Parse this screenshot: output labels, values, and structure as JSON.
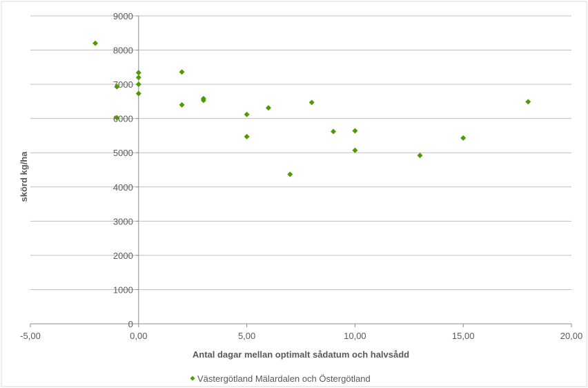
{
  "chart_data": {
    "type": "scatter",
    "title": "",
    "xlabel": "Antal dagar mellan optimalt sådatum och halvsådd",
    "ylabel": "skörd kg/ha",
    "xlim": [
      -5,
      20
    ],
    "ylim": [
      0,
      9000
    ],
    "x_ticks": [
      -5,
      0,
      5,
      10,
      15,
      20
    ],
    "x_tick_labels": [
      "-5,00",
      "0,00",
      "5,00",
      "10,00",
      "15,00",
      "20,00"
    ],
    "y_ticks": [
      0,
      1000,
      2000,
      3000,
      4000,
      5000,
      6000,
      7000,
      8000,
      9000
    ],
    "y_tick_labels": [
      "0",
      "1000",
      "2000",
      "3000",
      "4000",
      "5000",
      "6000",
      "7000",
      "8000",
      "9000"
    ],
    "grid": "horizontal",
    "legend_position": "bottom",
    "series": [
      {
        "name": "Västergötland Mälardalen och Östergötland",
        "color": "#4e9a06",
        "marker": "diamond",
        "points": [
          {
            "x": -2,
            "y": 8200
          },
          {
            "x": -1,
            "y": 6930
          },
          {
            "x": -1,
            "y": 6020
          },
          {
            "x": 0,
            "y": 7340
          },
          {
            "x": 0,
            "y": 7200
          },
          {
            "x": 0,
            "y": 7000
          },
          {
            "x": 0,
            "y": 6730
          },
          {
            "x": 2,
            "y": 7360
          },
          {
            "x": 2,
            "y": 6400
          },
          {
            "x": 3,
            "y": 6580
          },
          {
            "x": 3,
            "y": 6530
          },
          {
            "x": 5,
            "y": 6120
          },
          {
            "x": 5,
            "y": 5470
          },
          {
            "x": 6,
            "y": 6310
          },
          {
            "x": 7,
            "y": 4370
          },
          {
            "x": 8,
            "y": 6470
          },
          {
            "x": 9,
            "y": 5620
          },
          {
            "x": 10,
            "y": 5640
          },
          {
            "x": 10,
            "y": 5070
          },
          {
            "x": 13,
            "y": 4920
          },
          {
            "x": 15,
            "y": 5430
          },
          {
            "x": 18,
            "y": 6490
          }
        ]
      }
    ]
  }
}
